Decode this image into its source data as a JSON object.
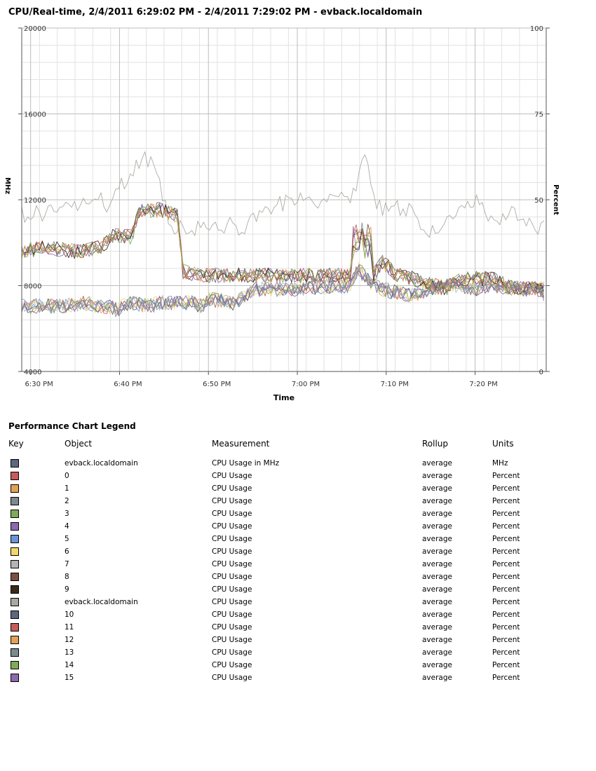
{
  "chart_data": {
    "type": "line",
    "title": "CPU/Real-time, 2/4/2011 6:29:02 PM - 2/4/2011 7:29:02 PM - evback.localdomain",
    "xlabel": "Time",
    "ylabel_left": "MHz",
    "ylabel_right": "Percent",
    "x_ticks": [
      "6:30 PM",
      "6:40 PM",
      "6:50 PM",
      "7:00 PM",
      "7:10 PM",
      "7:20 PM"
    ],
    "y_left_ticks": [
      20000,
      16000,
      12000,
      8000,
      4000
    ],
    "y_right_ticks": [
      100,
      75,
      50,
      25,
      0
    ],
    "ylim_left": [
      4000,
      20000
    ],
    "ylim_right": [
      0,
      100
    ],
    "grid": true,
    "x_minutes_range": [
      0,
      59
    ],
    "anchors": {
      "group_a": [
        [
          0,
          35
        ],
        [
          3,
          36
        ],
        [
          7,
          35
        ],
        [
          10,
          36
        ],
        [
          12,
          40
        ],
        [
          14,
          39
        ],
        [
          15,
          47
        ],
        [
          17,
          47
        ],
        [
          18,
          47
        ],
        [
          19,
          46
        ],
        [
          20,
          45
        ],
        [
          20.5,
          29
        ],
        [
          23,
          28
        ],
        [
          28,
          28
        ],
        [
          32,
          28
        ],
        [
          33,
          28
        ],
        [
          38,
          28
        ],
        [
          40,
          28
        ],
        [
          42,
          28
        ],
        [
          44,
          28
        ],
        [
          45,
          28
        ],
        [
          46,
          32
        ],
        [
          48,
          28
        ],
        [
          50,
          27
        ],
        [
          52,
          26
        ],
        [
          54,
          24
        ],
        [
          56,
          27
        ],
        [
          57,
          27
        ],
        [
          60,
          27
        ],
        [
          63,
          24
        ],
        [
          64,
          24
        ],
        [
          66,
          24
        ],
        [
          67,
          22
        ]
      ],
      "group_b": [
        [
          0,
          19
        ],
        [
          3,
          19
        ],
        [
          5,
          19
        ],
        [
          8,
          20
        ],
        [
          10,
          19
        ],
        [
          11,
          19
        ],
        [
          12,
          18
        ],
        [
          14,
          20
        ],
        [
          16,
          19
        ],
        [
          18,
          20
        ],
        [
          20,
          20
        ],
        [
          22,
          20
        ],
        [
          23,
          19
        ],
        [
          24,
          21
        ],
        [
          27,
          20
        ],
        [
          28,
          21
        ],
        [
          30,
          24
        ],
        [
          35,
          24
        ],
        [
          40,
          25
        ],
        [
          42,
          25
        ],
        [
          43,
          30
        ],
        [
          44,
          27
        ],
        [
          45,
          25
        ],
        [
          46,
          24
        ],
        [
          48,
          23
        ],
        [
          50,
          22
        ],
        [
          52,
          24
        ],
        [
          54,
          25
        ],
        [
          56,
          25
        ],
        [
          58,
          24
        ],
        [
          60,
          25
        ],
        [
          64,
          24
        ],
        [
          67,
          24
        ]
      ],
      "gray": [
        [
          0,
          46
        ],
        [
          3,
          46
        ],
        [
          6,
          48
        ],
        [
          8,
          49
        ],
        [
          10,
          50
        ],
        [
          11,
          48
        ],
        [
          13,
          55
        ],
        [
          15,
          60
        ],
        [
          16,
          62
        ],
        [
          17,
          60
        ],
        [
          18,
          52
        ],
        [
          19,
          41
        ],
        [
          20,
          42
        ],
        [
          22,
          42
        ],
        [
          24,
          41
        ],
        [
          26,
          43
        ],
        [
          28,
          42
        ],
        [
          30,
          44
        ],
        [
          32,
          47
        ],
        [
          34,
          50
        ],
        [
          36,
          52
        ],
        [
          38,
          50
        ],
        [
          40,
          51
        ],
        [
          42,
          50
        ],
        [
          43,
          55
        ],
        [
          44,
          66
        ],
        [
          44.5,
          58
        ],
        [
          45,
          50
        ],
        [
          46,
          47
        ],
        [
          47,
          48
        ],
        [
          48,
          48
        ],
        [
          50,
          46
        ],
        [
          52,
          41
        ],
        [
          53,
          42
        ],
        [
          55,
          44
        ],
        [
          57,
          48
        ],
        [
          58,
          50
        ],
        [
          59,
          46
        ],
        [
          61,
          44
        ],
        [
          63,
          47
        ],
        [
          64,
          45
        ],
        [
          66,
          42
        ],
        [
          67,
          44
        ]
      ]
    },
    "series": [
      {
        "name": "evback.localdomain",
        "color": "#5c6880",
        "group": "group_a"
      },
      {
        "name": "0",
        "color": "#c75b5b",
        "group": "group_b"
      },
      {
        "name": "1",
        "color": "#e1a257",
        "group": "group_b"
      },
      {
        "name": "2",
        "color": "#7b8a8e",
        "group": "group_a"
      },
      {
        "name": "3",
        "color": "#7dab58",
        "group": "group_b"
      },
      {
        "name": "4",
        "color": "#8c6aad",
        "group": "group_a"
      },
      {
        "name": "5",
        "color": "#6b94d6",
        "group": "group_b"
      },
      {
        "name": "6",
        "color": "#f1d86a",
        "group": "group_b"
      },
      {
        "name": "7",
        "color": "#b5b5b5",
        "group": "group_b"
      },
      {
        "name": "8",
        "color": "#7a5040",
        "group": "group_a"
      },
      {
        "name": "9",
        "color": "#3a2a1c",
        "group": "group_a"
      },
      {
        "name": "evback.localdomain",
        "color": "#a8a8a0",
        "group": "gray"
      },
      {
        "name": "10",
        "color": "#5c6880",
        "group": "group_b"
      },
      {
        "name": "11",
        "color": "#c75b5b",
        "group": "group_a"
      },
      {
        "name": "12",
        "color": "#e1a257",
        "group": "group_a"
      },
      {
        "name": "13",
        "color": "#7b8a8e",
        "group": "group_b"
      },
      {
        "name": "14",
        "color": "#7dab58",
        "group": "group_a"
      },
      {
        "name": "15",
        "color": "#8c6aad",
        "group": "group_b"
      }
    ]
  },
  "legend": {
    "title": "Performance Chart Legend",
    "headers": {
      "key": "Key",
      "object": "Object",
      "measurement": "Measurement",
      "rollup": "Rollup",
      "units": "Units"
    },
    "rows": [
      {
        "color": "#5c6880",
        "object": "evback.localdomain",
        "measurement": "CPU Usage in MHz",
        "rollup": "average",
        "units": "MHz"
      },
      {
        "color": "#c75b5b",
        "object": "0",
        "measurement": "CPU Usage",
        "rollup": "average",
        "units": "Percent"
      },
      {
        "color": "#e1a257",
        "object": "1",
        "measurement": "CPU Usage",
        "rollup": "average",
        "units": "Percent"
      },
      {
        "color": "#7b8a8e",
        "object": "2",
        "measurement": "CPU Usage",
        "rollup": "average",
        "units": "Percent"
      },
      {
        "color": "#7dab58",
        "object": "3",
        "measurement": "CPU Usage",
        "rollup": "average",
        "units": "Percent"
      },
      {
        "color": "#8c6aad",
        "object": "4",
        "measurement": "CPU Usage",
        "rollup": "average",
        "units": "Percent"
      },
      {
        "color": "#6b94d6",
        "object": "5",
        "measurement": "CPU Usage",
        "rollup": "average",
        "units": "Percent"
      },
      {
        "color": "#f1d86a",
        "object": "6",
        "measurement": "CPU Usage",
        "rollup": "average",
        "units": "Percent"
      },
      {
        "color": "#b5b5b5",
        "object": "7",
        "measurement": "CPU Usage",
        "rollup": "average",
        "units": "Percent"
      },
      {
        "color": "#7a5040",
        "object": "8",
        "measurement": "CPU Usage",
        "rollup": "average",
        "units": "Percent"
      },
      {
        "color": "#3a2a1c",
        "object": "9",
        "measurement": "CPU Usage",
        "rollup": "average",
        "units": "Percent"
      },
      {
        "color": "#a8a8a0",
        "object": "evback.localdomain",
        "measurement": "CPU Usage",
        "rollup": "average",
        "units": "Percent"
      },
      {
        "color": "#5c6880",
        "object": "10",
        "measurement": "CPU Usage",
        "rollup": "average",
        "units": "Percent"
      },
      {
        "color": "#c75b5b",
        "object": "11",
        "measurement": "CPU Usage",
        "rollup": "average",
        "units": "Percent"
      },
      {
        "color": "#e1a257",
        "object": "12",
        "measurement": "CPU Usage",
        "rollup": "average",
        "units": "Percent"
      },
      {
        "color": "#7b8a8e",
        "object": "13",
        "measurement": "CPU Usage",
        "rollup": "average",
        "units": "Percent"
      },
      {
        "color": "#7dab58",
        "object": "14",
        "measurement": "CPU Usage",
        "rollup": "average",
        "units": "Percent"
      },
      {
        "color": "#8c6aad",
        "object": "15",
        "measurement": "CPU Usage",
        "rollup": "average",
        "units": "Percent"
      }
    ]
  }
}
